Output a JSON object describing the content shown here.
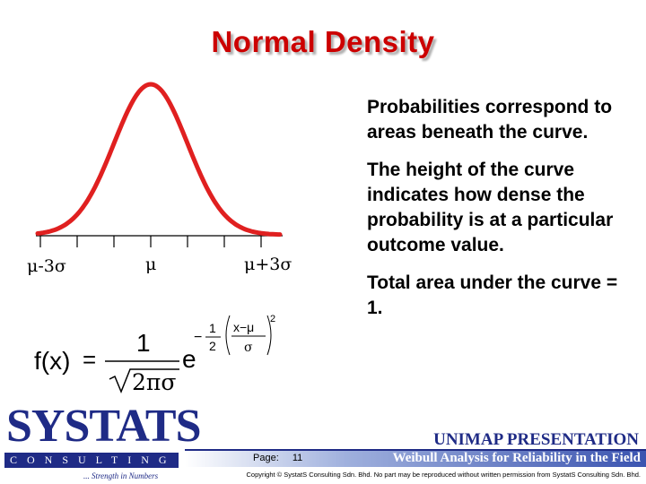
{
  "slide": {
    "title": "Normal Density",
    "bullets": [
      "Probabilities correspond to areas beneath the curve.",
      "The height of the curve indicates how dense the probability is at a particular outcome value.",
      "Total area under the curve = 1."
    ]
  },
  "diagram": {
    "axis_labels": {
      "left": "μ-3σ",
      "center": "μ",
      "right": "μ+3σ"
    },
    "curve_color": "#e02020",
    "formula": {
      "lhs": "f(x)",
      "equals": "=",
      "numerator": "1",
      "denominator": "2πσ",
      "base": "e",
      "exp_sign": "−",
      "exp_numerator": "1",
      "exp_denominator": "2",
      "frac_numerator": "x−μ",
      "frac_denominator": "σ",
      "power": "2"
    }
  },
  "branding": {
    "logo_word": "SYSTATS",
    "logo_sub": "CONSULTING",
    "tagline": "... Strength in Numbers",
    "presentation": "UNIMAP PRESENTATION",
    "page_label": "Page:",
    "page_number": "11",
    "footer_title": "Weibull Analysis for Reliability in the Field",
    "copyright": "Copyright © SystatS Consulting Sdn. Bhd. No part may be reproduced without written permission from SystatS Consulting Sdn. Bhd.",
    "brand_color": "#1f2b86",
    "title_color": "#cc0000"
  }
}
